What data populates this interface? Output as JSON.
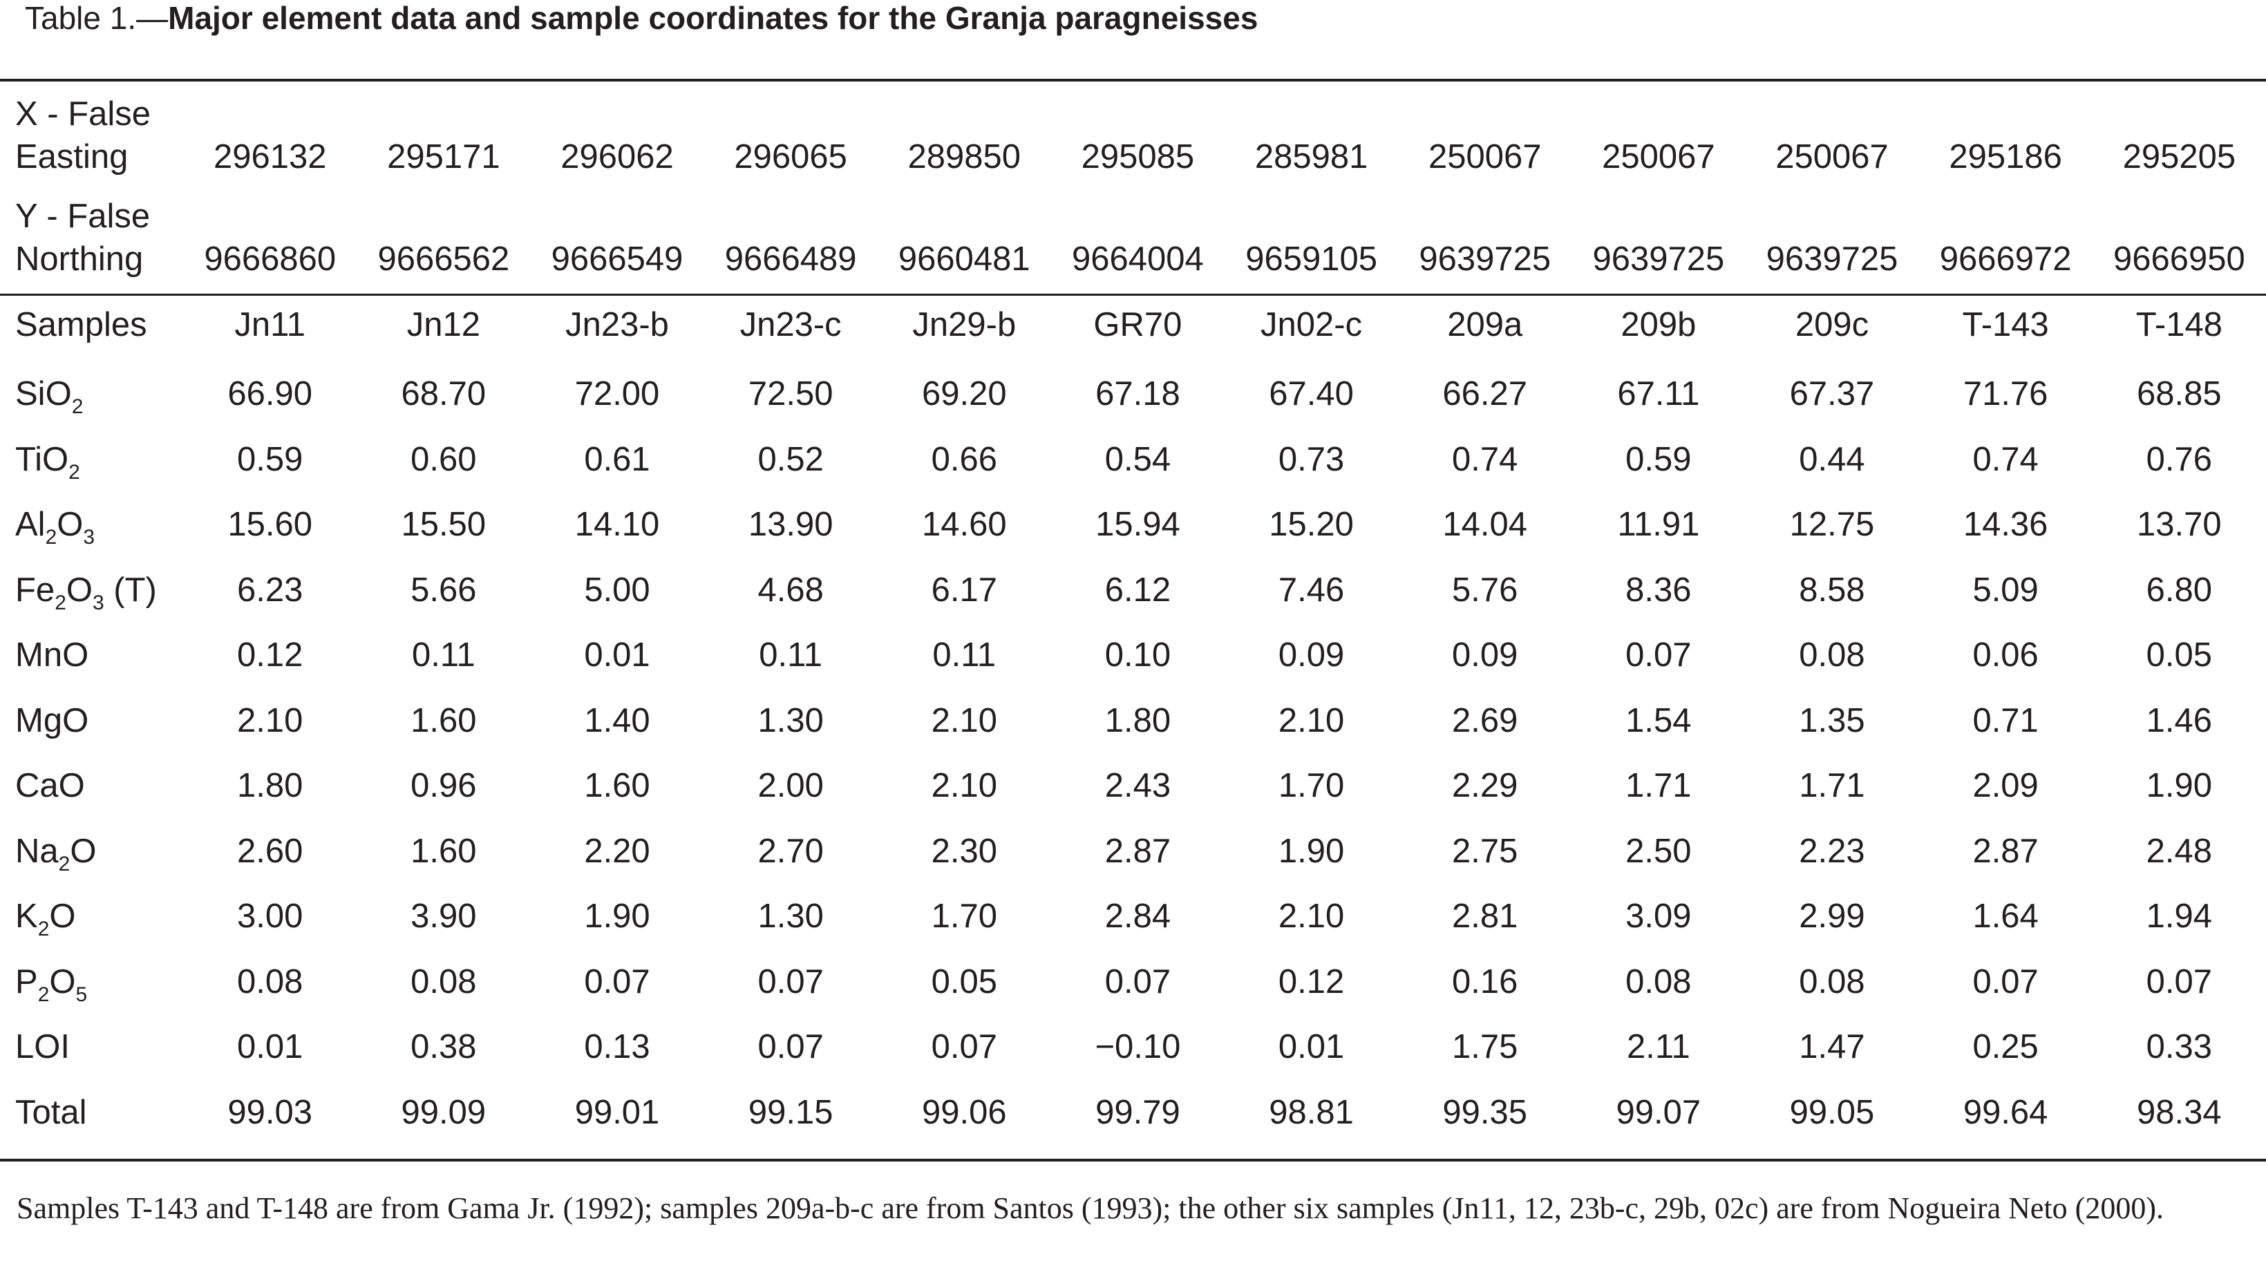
{
  "caption": {
    "prefix": "Table 1.—",
    "title": "Major element data and sample coordinates for the Granja paragneisses"
  },
  "coordinates": {
    "x_label_line1": "X - False",
    "x_label_line2": "Easting",
    "x_values": [
      "296132",
      "295171",
      "296062",
      "296065",
      "289850",
      "295085",
      "285981",
      "250067",
      "250067",
      "250067",
      "295186",
      "295205"
    ],
    "y_label_line1": "Y - False",
    "y_label_line2": "Northing",
    "y_values": [
      "9666860",
      "9666562",
      "9666549",
      "9666489",
      "9660481",
      "9664004",
      "9659105",
      "9639725",
      "9639725",
      "9639725",
      "9666972",
      "9666950"
    ]
  },
  "samples": {
    "label": "Samples",
    "names": [
      "Jn11",
      "Jn12",
      "Jn23-b",
      "Jn23-c",
      "Jn29-b",
      "GR70",
      "Jn02-c",
      "209a",
      "209b",
      "209c",
      "T-143",
      "T-148"
    ]
  },
  "elements": [
    {
      "label": "SiO",
      "sub": "2",
      "tail": "",
      "sub2": "",
      "tail2": "",
      "values": [
        "66.90",
        "68.70",
        "72.00",
        "72.50",
        "69.20",
        "67.18",
        "67.40",
        "66.27",
        "67.11",
        "67.37",
        "71.76",
        "68.85"
      ]
    },
    {
      "label": "TiO",
      "sub": "2",
      "tail": "",
      "sub2": "",
      "tail2": "",
      "values": [
        "0.59",
        "0.60",
        "0.61",
        "0.52",
        "0.66",
        "0.54",
        "0.73",
        "0.74",
        "0.59",
        "0.44",
        "0.74",
        "0.76"
      ]
    },
    {
      "label": "Al",
      "sub": "2",
      "tail": "O",
      "sub2": "3",
      "tail2": "",
      "values": [
        "15.60",
        "15.50",
        "14.10",
        "13.90",
        "14.60",
        "15.94",
        "15.20",
        "14.04",
        "11.91",
        "12.75",
        "14.36",
        "13.70"
      ]
    },
    {
      "label": "Fe",
      "sub": "2",
      "tail": "O",
      "sub2": "3",
      "tail2": " (T)",
      "values": [
        "6.23",
        "5.66",
        "5.00",
        "4.68",
        "6.17",
        "6.12",
        "7.46",
        "5.76",
        "8.36",
        "8.58",
        "5.09",
        "6.80"
      ]
    },
    {
      "label": "MnO",
      "sub": "",
      "tail": "",
      "sub2": "",
      "tail2": "",
      "values": [
        "0.12",
        "0.11",
        "0.01",
        "0.11",
        "0.11",
        "0.10",
        "0.09",
        "0.09",
        "0.07",
        "0.08",
        "0.06",
        "0.05"
      ]
    },
    {
      "label": "MgO",
      "sub": "",
      "tail": "",
      "sub2": "",
      "tail2": "",
      "values": [
        "2.10",
        "1.60",
        "1.40",
        "1.30",
        "2.10",
        "1.80",
        "2.10",
        "2.69",
        "1.54",
        "1.35",
        "0.71",
        "1.46"
      ]
    },
    {
      "label": "CaO",
      "sub": "",
      "tail": "",
      "sub2": "",
      "tail2": "",
      "values": [
        "1.80",
        "0.96",
        "1.60",
        "2.00",
        "2.10",
        "2.43",
        "1.70",
        "2.29",
        "1.71",
        "1.71",
        "2.09",
        "1.90"
      ]
    },
    {
      "label": "Na",
      "sub": "2",
      "tail": "O",
      "sub2": "",
      "tail2": "",
      "values": [
        "2.60",
        "1.60",
        "2.20",
        "2.70",
        "2.30",
        "2.87",
        "1.90",
        "2.75",
        "2.50",
        "2.23",
        "2.87",
        "2.48"
      ]
    },
    {
      "label": "K",
      "sub": "2",
      "tail": "O",
      "sub2": "",
      "tail2": "",
      "values": [
        "3.00",
        "3.90",
        "1.90",
        "1.30",
        "1.70",
        "2.84",
        "2.10",
        "2.81",
        "3.09",
        "2.99",
        "1.64",
        "1.94"
      ]
    },
    {
      "label": "P",
      "sub": "2",
      "tail": "O",
      "sub2": "5",
      "tail2": "",
      "values": [
        "0.08",
        "0.08",
        "0.07",
        "0.07",
        "0.05",
        "0.07",
        "0.12",
        "0.16",
        "0.08",
        "0.08",
        "0.07",
        "0.07"
      ]
    },
    {
      "label": "LOI",
      "sub": "",
      "tail": "",
      "sub2": "",
      "tail2": "",
      "values": [
        "0.01",
        "0.38",
        "0.13",
        "0.07",
        "0.07",
        "−0.10",
        "0.01",
        "1.75",
        "2.11",
        "1.47",
        "0.25",
        "0.33"
      ]
    },
    {
      "label": "Total",
      "sub": "",
      "tail": "",
      "sub2": "",
      "tail2": "",
      "values": [
        "99.03",
        "99.09",
        "99.01",
        "99.15",
        "99.06",
        "99.79",
        "98.81",
        "99.35",
        "99.07",
        "99.05",
        "99.64",
        "98.34"
      ]
    }
  ],
  "footnote": "Samples T-143 and T-148 are from Gama Jr. (1992); samples 209a-b-c are from Santos (1993); the other six samples (Jn11, 12, 23b-c, 29b, 02c) are from Nogueira Neto (2000)."
}
